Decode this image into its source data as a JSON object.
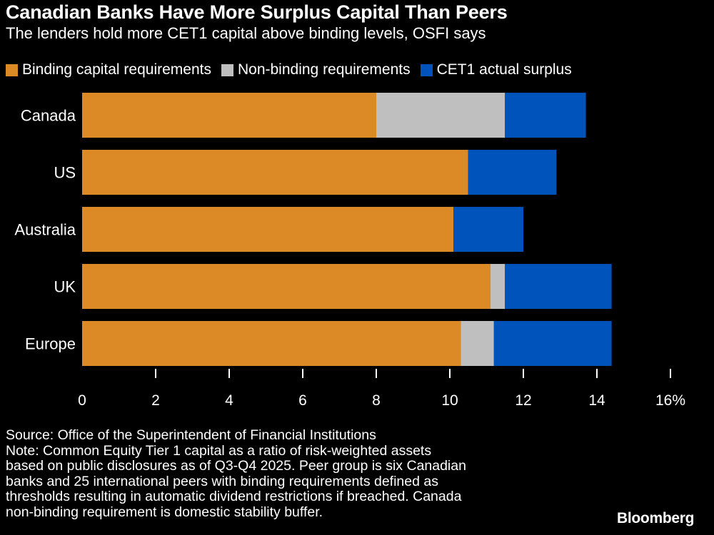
{
  "chart_data": {
    "type": "bar",
    "orientation": "horizontal",
    "stacked": true,
    "title": "Canadian Banks Have More Surplus Capital Than Peers",
    "subtitle": "The lenders hold more CET1 capital above binding levels, OSFI says",
    "categories": [
      "Canada",
      "US",
      "Australia",
      "UK",
      "Europe"
    ],
    "series": [
      {
        "name": "Binding capital requirements",
        "color": "#dc8a25",
        "values": [
          8.0,
          10.5,
          10.1,
          11.1,
          10.3
        ]
      },
      {
        "name": "Non-binding requirements",
        "color": "#bfbfbf",
        "values": [
          3.5,
          0,
          0,
          0.4,
          0.9
        ]
      },
      {
        "name": "CET1 actual surplus",
        "color": "#0053bb",
        "values": [
          2.2,
          2.4,
          1.9,
          2.9,
          3.2
        ]
      }
    ],
    "xlim": [
      0,
      16
    ],
    "xticks": [
      "0",
      "2",
      "4",
      "6",
      "8",
      "10",
      "12",
      "14",
      "16%"
    ],
    "legend_position": "top",
    "grid": false
  },
  "footer": {
    "source": "Source: Office of the Superintendent of Financial Institutions",
    "note_lines": [
      "Note: Common Equity Tier 1 capital as a ratio of risk-weighted assets",
      "based on public disclosures as of Q3-Q4 2025. Peer group is six Canadian",
      "banks and 25 international peers with binding requirements defined as",
      "thresholds resulting in automatic dividend restrictions if breached. Canada",
      "non-binding requirement is domestic stability buffer."
    ],
    "logo": "Bloomberg"
  }
}
